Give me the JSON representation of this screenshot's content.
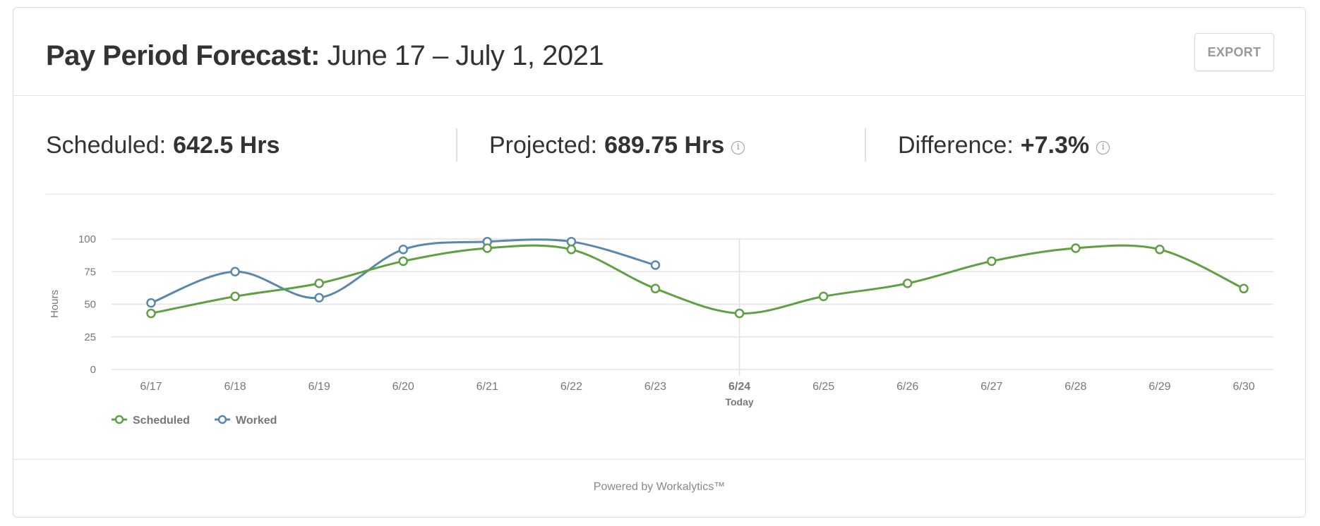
{
  "header": {
    "title_bold": "Pay Period Forecast:",
    "title_range": "June 17 – July 1, 2021",
    "export_label": "EXPORT"
  },
  "stats": [
    {
      "label": "Scheduled:",
      "value": "642.5 Hrs",
      "info": false
    },
    {
      "label": "Projected:",
      "value": "689.75 Hrs",
      "info": true
    },
    {
      "label": "Difference:",
      "value": "+7.3%",
      "info": true
    }
  ],
  "info_icon": "i",
  "legend": [
    {
      "name": "Scheduled",
      "color": "#5fa043"
    },
    {
      "name": "Worked",
      "color": "#5b87ad"
    }
  ],
  "today": {
    "date": "6/24",
    "label": "Today"
  },
  "footer": {
    "text": "Powered by Workalytics™"
  },
  "chart_data": {
    "type": "line",
    "title": "",
    "xlabel": "",
    "ylabel": "Hours",
    "ylim": [
      0,
      100
    ],
    "yticks": [
      0,
      25,
      50,
      75,
      100
    ],
    "grid": true,
    "legend_position": "bottom-left",
    "categories": [
      "6/17",
      "6/18",
      "6/19",
      "6/20",
      "6/21",
      "6/22",
      "6/23",
      "6/24",
      "6/25",
      "6/26",
      "6/27",
      "6/28",
      "6/29",
      "6/30"
    ],
    "annotations": [
      {
        "x": "6/24",
        "text": "Today",
        "type": "vertical-line"
      }
    ],
    "series": [
      {
        "name": "Scheduled",
        "color": "#5fa043",
        "values": [
          43,
          56,
          66,
          83,
          93,
          92,
          62,
          43,
          56,
          66,
          83,
          93,
          92,
          62
        ]
      },
      {
        "name": "Worked",
        "color": "#5b87ad",
        "values": [
          51,
          75,
          55,
          92,
          98,
          98,
          80,
          null,
          null,
          null,
          null,
          null,
          null,
          null
        ]
      }
    ]
  }
}
